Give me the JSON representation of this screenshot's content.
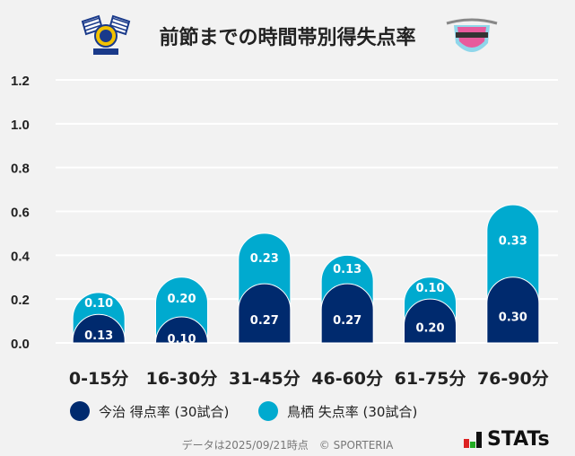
{
  "title": "前節までの時間帯別得失点率",
  "logos": {
    "left": "今治 crest",
    "right": "sagantosu"
  },
  "legend": [
    {
      "label": "今治 得点率 (30試合)",
      "color": "#002a6e"
    },
    {
      "label": "鳥栖 失点率 (30試合)",
      "color": "#00aacf"
    }
  ],
  "footer": "データは2025/09/21時点　© SPORTERIA",
  "brand": "STATs",
  "chart_data": {
    "type": "bar",
    "stacked": true,
    "categories": [
      "0-15分",
      "16-30分",
      "31-45分",
      "46-60分",
      "61-75分",
      "76-90分"
    ],
    "series": [
      {
        "name": "今治 得点率 (30試合)",
        "color": "#002a6e",
        "values": [
          0.13,
          0.1,
          0.27,
          0.27,
          0.2,
          0.3
        ],
        "labels": [
          "0.13",
          "0.10",
          "0.27",
          "0.27",
          "0.20",
          "0.30"
        ]
      },
      {
        "name": "鳥栖 失点率 (30試合)",
        "color": "#00aacf",
        "values": [
          0.1,
          0.2,
          0.23,
          0.13,
          0.1,
          0.33
        ],
        "labels": [
          "0.10",
          "0.20",
          "0.23",
          "0.13",
          "0.10",
          "0.33"
        ]
      }
    ],
    "yticks": [
      "0.0",
      "0.2",
      "0.4",
      "0.6",
      "0.8",
      "1.0",
      "1.2"
    ],
    "ylim": [
      0,
      1.2
    ],
    "grid": true,
    "legend_position": "bottom"
  }
}
